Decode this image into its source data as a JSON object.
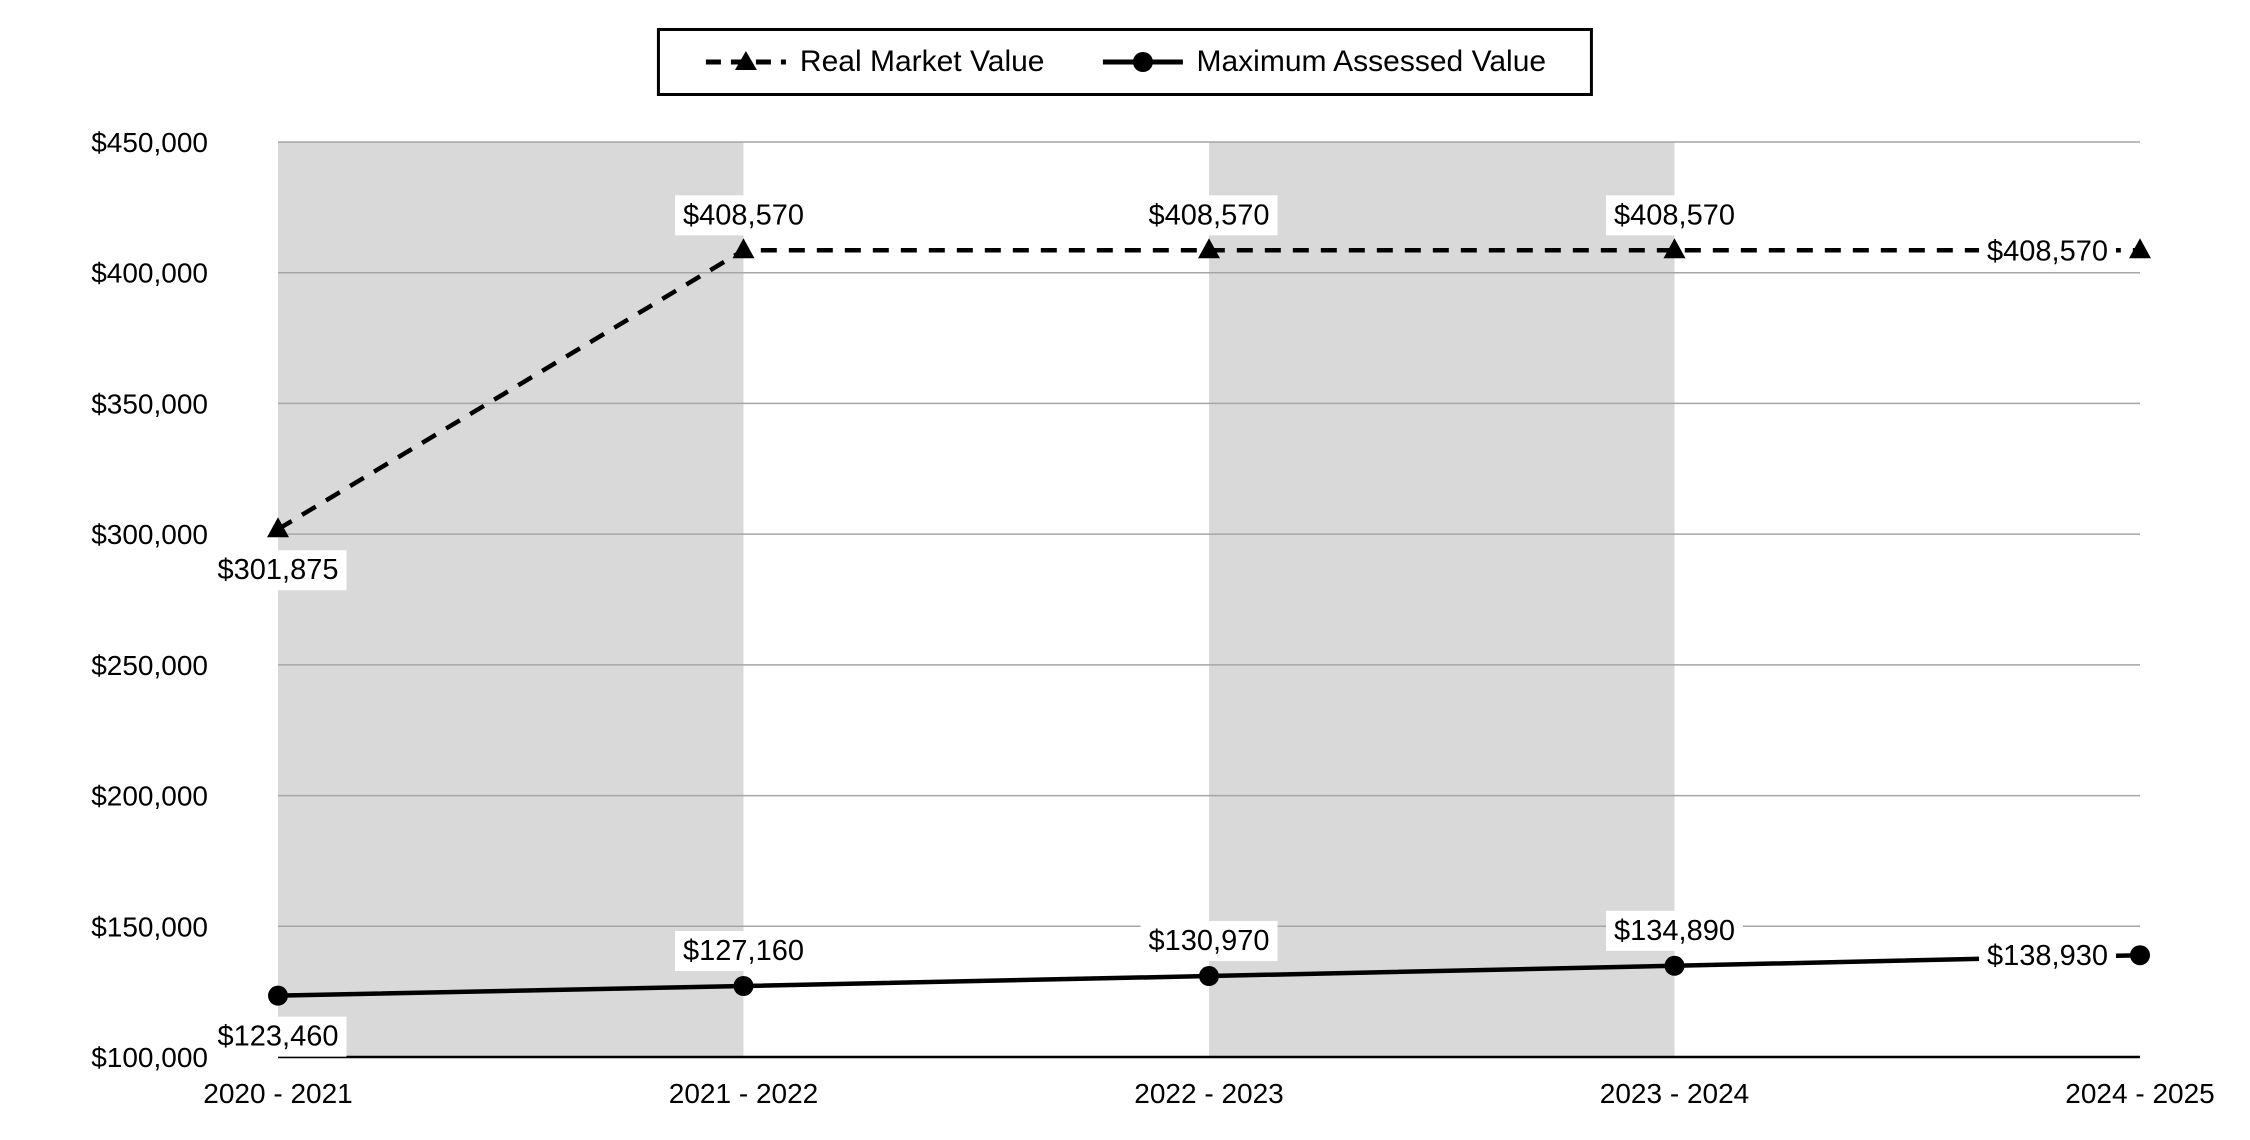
{
  "chart_data": {
    "type": "line",
    "title": "",
    "categories": [
      "2020 - 2021",
      "2021 - 2022",
      "2022 - 2023",
      "2023 - 2024",
      "2024 - 2025"
    ],
    "series": [
      {
        "name": "Real Market Value",
        "line_style": "dashed",
        "marker": "triangle",
        "values": [
          301875,
          408570,
          408570,
          408570,
          408570
        ],
        "data_labels": [
          "$301,875",
          "$408,570",
          "$408,570",
          "$408,570",
          "$408,570"
        ],
        "label_positions": [
          "below",
          "above",
          "above",
          "above",
          "left"
        ]
      },
      {
        "name": "Maximum Assessed Value",
        "line_style": "solid",
        "marker": "circle",
        "values": [
          123460,
          127160,
          130970,
          134890,
          138930
        ],
        "data_labels": [
          "$123,460",
          "$127,160",
          "$130,970",
          "$134,890",
          "$138,930"
        ],
        "label_positions": [
          "below",
          "above",
          "above",
          "above",
          "left"
        ]
      }
    ],
    "ylim": [
      100000,
      450000
    ],
    "ytick_step": 50000,
    "ytick_labels": [
      "$100,000",
      "$150,000",
      "$200,000",
      "$250,000",
      "$300,000",
      "$350,000",
      "$400,000",
      "$450,000"
    ],
    "grid": true,
    "legend_position": "top-center",
    "plot_bands": {
      "color": "#d9d9d9",
      "intervals": [
        [
          0,
          1
        ],
        [
          2,
          3
        ]
      ]
    },
    "colors": {
      "line": "#000000",
      "gridline": "#a6a6a6",
      "axis": "#000000",
      "background": "#ffffff",
      "label_bg": "#ffffff",
      "text": "#000000"
    }
  }
}
